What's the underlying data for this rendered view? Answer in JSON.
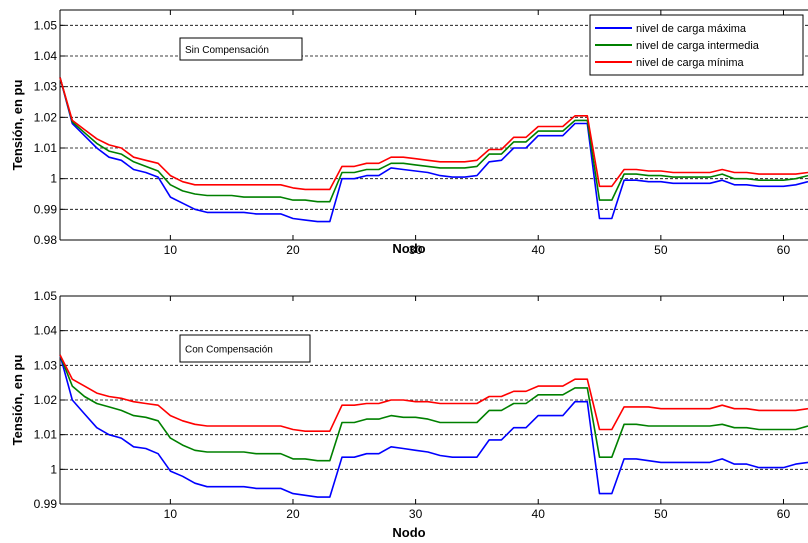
{
  "chart_data": [
    {
      "type": "line",
      "annotation": "Sin Compensación",
      "xlabel": "Nodo",
      "ylabel": "Tensión, en pu",
      "xlim": [
        1,
        62
      ],
      "ylim": [
        0.98,
        1.055
      ],
      "xticks": [
        10,
        20,
        30,
        40,
        50,
        60
      ],
      "yticks": [
        0.98,
        0.99,
        1,
        1.01,
        1.02,
        1.03,
        1.04,
        1.05
      ],
      "ytick_labels": [
        "0.98",
        "0.99",
        "1",
        "1.01",
        "1.02",
        "1.03",
        "1.04",
        "1.05"
      ],
      "grid": "y-dashed",
      "legend": "top-right",
      "series": [
        {
          "name": "nivel de carga máxima",
          "color": "#0000ff",
          "x": [
            1,
            2,
            3,
            4,
            5,
            6,
            7,
            8,
            9,
            10,
            11,
            12,
            13,
            14,
            15,
            16,
            17,
            18,
            19,
            20,
            21,
            22,
            23,
            24,
            25,
            26,
            27,
            28,
            29,
            30,
            31,
            32,
            33,
            34,
            35,
            36,
            37,
            38,
            39,
            40,
            41,
            42,
            43,
            44,
            45,
            46,
            47,
            48,
            49,
            50,
            51,
            52,
            53,
            54,
            55,
            56,
            57,
            58,
            59,
            60,
            61,
            62
          ],
          "values": [
            1.033,
            1.018,
            1.014,
            1.01,
            1.007,
            1.006,
            1.003,
            1.002,
            1.0005,
            0.994,
            0.992,
            0.99,
            0.989,
            0.989,
            0.989,
            0.989,
            0.9885,
            0.9885,
            0.9885,
            0.987,
            0.9865,
            0.986,
            0.986,
            1.0,
            1.0,
            1.001,
            1.001,
            1.0035,
            1.003,
            1.0025,
            1.002,
            1.001,
            1.0005,
            1.0005,
            1.001,
            1.0055,
            1.006,
            1.01,
            1.01,
            1.014,
            1.014,
            1.014,
            1.018,
            1.018,
            0.987,
            0.987,
            0.9995,
            0.9995,
            0.999,
            0.999,
            0.9985,
            0.9985,
            0.9985,
            0.9985,
            0.9995,
            0.998,
            0.998,
            0.9975,
            0.9975,
            0.9975,
            0.998,
            0.999
          ]
        },
        {
          "name": "nivel de carga intermedia",
          "color": "#008000",
          "x": [
            1,
            2,
            3,
            4,
            5,
            6,
            7,
            8,
            9,
            10,
            11,
            12,
            13,
            14,
            15,
            16,
            17,
            18,
            19,
            20,
            21,
            22,
            23,
            24,
            25,
            26,
            27,
            28,
            29,
            30,
            31,
            32,
            33,
            34,
            35,
            36,
            37,
            38,
            39,
            40,
            41,
            42,
            43,
            44,
            45,
            46,
            47,
            48,
            49,
            50,
            51,
            52,
            53,
            54,
            55,
            56,
            57,
            58,
            59,
            60,
            61,
            62
          ],
          "values": [
            1.033,
            1.0185,
            1.015,
            1.0115,
            1.009,
            1.008,
            1.0055,
            1.004,
            1.0025,
            0.998,
            0.996,
            0.995,
            0.9945,
            0.9945,
            0.9945,
            0.994,
            0.994,
            0.994,
            0.994,
            0.993,
            0.993,
            0.9925,
            0.9925,
            1.002,
            1.002,
            1.003,
            1.003,
            1.005,
            1.005,
            1.0045,
            1.004,
            1.0035,
            1.0035,
            1.0035,
            1.004,
            1.008,
            1.008,
            1.012,
            1.012,
            1.0155,
            1.0155,
            1.0155,
            1.019,
            1.019,
            0.993,
            0.993,
            1.0015,
            1.0015,
            1.001,
            1.001,
            1.0005,
            1.0005,
            1.0005,
            1.0005,
            1.0015,
            1.0,
            1.0,
            0.9995,
            0.9995,
            0.9995,
            1.0,
            1.001
          ]
        },
        {
          "name": "nivel de carga mínima",
          "color": "#ff0000",
          "x": [
            1,
            2,
            3,
            4,
            5,
            6,
            7,
            8,
            9,
            10,
            11,
            12,
            13,
            14,
            15,
            16,
            17,
            18,
            19,
            20,
            21,
            22,
            23,
            24,
            25,
            26,
            27,
            28,
            29,
            30,
            31,
            32,
            33,
            34,
            35,
            36,
            37,
            38,
            39,
            40,
            41,
            42,
            43,
            44,
            45,
            46,
            47,
            48,
            49,
            50,
            51,
            52,
            53,
            54,
            55,
            56,
            57,
            58,
            59,
            60,
            61,
            62
          ],
          "values": [
            1.033,
            1.019,
            1.016,
            1.013,
            1.011,
            1.01,
            1.007,
            1.006,
            1.005,
            1.001,
            0.999,
            0.998,
            0.998,
            0.998,
            0.998,
            0.998,
            0.998,
            0.998,
            0.998,
            0.997,
            0.9965,
            0.9965,
            0.9965,
            1.004,
            1.004,
            1.005,
            1.005,
            1.007,
            1.007,
            1.0065,
            1.006,
            1.0055,
            1.0055,
            1.0055,
            1.006,
            1.0095,
            1.0095,
            1.0135,
            1.0135,
            1.017,
            1.017,
            1.017,
            1.0205,
            1.0205,
            0.9975,
            0.9975,
            1.003,
            1.003,
            1.0025,
            1.0025,
            1.002,
            1.002,
            1.002,
            1.002,
            1.003,
            1.002,
            1.002,
            1.0015,
            1.0015,
            1.0015,
            1.0015,
            1.002
          ]
        }
      ]
    },
    {
      "type": "line",
      "annotation": "Con Compensación",
      "xlabel": "Nodo",
      "ylabel": "Tensión, en pu",
      "xlim": [
        1,
        62
      ],
      "ylim": [
        0.99,
        1.05
      ],
      "xticks": [
        10,
        20,
        30,
        40,
        50,
        60
      ],
      "yticks": [
        0.99,
        1,
        1.01,
        1.02,
        1.03,
        1.04,
        1.05
      ],
      "ytick_labels": [
        "0.99",
        "1",
        "1.01",
        "1.02",
        "1.03",
        "1.04",
        "1.05"
      ],
      "grid": "y-dashed",
      "series": [
        {
          "name": "nivel de carga máxima",
          "color": "#0000ff",
          "x": [
            1,
            2,
            3,
            4,
            5,
            6,
            7,
            8,
            9,
            10,
            11,
            12,
            13,
            14,
            15,
            16,
            17,
            18,
            19,
            20,
            21,
            22,
            23,
            24,
            25,
            26,
            27,
            28,
            29,
            30,
            31,
            32,
            33,
            34,
            35,
            36,
            37,
            38,
            39,
            40,
            41,
            42,
            43,
            44,
            45,
            46,
            47,
            48,
            49,
            50,
            51,
            52,
            53,
            54,
            55,
            56,
            57,
            58,
            59,
            60,
            61,
            62
          ],
          "values": [
            1.033,
            1.02,
            1.016,
            1.012,
            1.01,
            1.009,
            1.0065,
            1.006,
            1.0045,
            0.9995,
            0.998,
            0.996,
            0.995,
            0.995,
            0.995,
            0.995,
            0.9945,
            0.9945,
            0.9945,
            0.993,
            0.9925,
            0.992,
            0.992,
            1.0035,
            1.0035,
            1.0045,
            1.0045,
            1.0065,
            1.006,
            1.0055,
            1.005,
            1.004,
            1.0035,
            1.0035,
            1.0035,
            1.0085,
            1.0085,
            1.012,
            1.012,
            1.0155,
            1.0155,
            1.0155,
            1.0195,
            1.0195,
            0.993,
            0.993,
            1.003,
            1.003,
            1.0025,
            1.002,
            1.002,
            1.002,
            1.002,
            1.002,
            1.003,
            1.0015,
            1.0015,
            1.0005,
            1.0005,
            1.0005,
            1.0015,
            1.002
          ]
        },
        {
          "name": "nivel de carga intermedia",
          "color": "#008000",
          "x": [
            1,
            2,
            3,
            4,
            5,
            6,
            7,
            8,
            9,
            10,
            11,
            12,
            13,
            14,
            15,
            16,
            17,
            18,
            19,
            20,
            21,
            22,
            23,
            24,
            25,
            26,
            27,
            28,
            29,
            30,
            31,
            32,
            33,
            34,
            35,
            36,
            37,
            38,
            39,
            40,
            41,
            42,
            43,
            44,
            45,
            46,
            47,
            48,
            49,
            50,
            51,
            52,
            53,
            54,
            55,
            56,
            57,
            58,
            59,
            60,
            61,
            62
          ],
          "values": [
            1.033,
            1.024,
            1.021,
            1.019,
            1.018,
            1.017,
            1.0155,
            1.015,
            1.014,
            1.009,
            1.007,
            1.0055,
            1.005,
            1.005,
            1.005,
            1.005,
            1.0045,
            1.0045,
            1.0045,
            1.003,
            1.003,
            1.0025,
            1.0025,
            1.0135,
            1.0135,
            1.0145,
            1.0145,
            1.0155,
            1.015,
            1.015,
            1.0145,
            1.0135,
            1.0135,
            1.0135,
            1.0135,
            1.017,
            1.017,
            1.019,
            1.019,
            1.0215,
            1.0215,
            1.0215,
            1.0235,
            1.0235,
            1.0035,
            1.0035,
            1.013,
            1.013,
            1.0125,
            1.0125,
            1.0125,
            1.0125,
            1.0125,
            1.0125,
            1.013,
            1.012,
            1.012,
            1.0115,
            1.0115,
            1.0115,
            1.0115,
            1.0125
          ]
        },
        {
          "name": "nivel de carga mínima",
          "color": "#ff0000",
          "x": [
            1,
            2,
            3,
            4,
            5,
            6,
            7,
            8,
            9,
            10,
            11,
            12,
            13,
            14,
            15,
            16,
            17,
            18,
            19,
            20,
            21,
            22,
            23,
            24,
            25,
            26,
            27,
            28,
            29,
            30,
            31,
            32,
            33,
            34,
            35,
            36,
            37,
            38,
            39,
            40,
            41,
            42,
            43,
            44,
            45,
            46,
            47,
            48,
            49,
            50,
            51,
            52,
            53,
            54,
            55,
            56,
            57,
            58,
            59,
            60,
            61,
            62
          ],
          "values": [
            1.033,
            1.026,
            1.024,
            1.022,
            1.021,
            1.0205,
            1.0195,
            1.019,
            1.0185,
            1.0155,
            1.014,
            1.013,
            1.0125,
            1.0125,
            1.0125,
            1.0125,
            1.0125,
            1.0125,
            1.0125,
            1.0115,
            1.011,
            1.011,
            1.011,
            1.0185,
            1.0185,
            1.019,
            1.019,
            1.02,
            1.02,
            1.0195,
            1.0195,
            1.019,
            1.019,
            1.019,
            1.019,
            1.021,
            1.021,
            1.0225,
            1.0225,
            1.024,
            1.024,
            1.024,
            1.026,
            1.026,
            1.0115,
            1.0115,
            1.018,
            1.018,
            1.018,
            1.0175,
            1.0175,
            1.0175,
            1.0175,
            1.0175,
            1.0185,
            1.0175,
            1.0175,
            1.017,
            1.017,
            1.017,
            1.017,
            1.0175
          ]
        }
      ]
    }
  ]
}
